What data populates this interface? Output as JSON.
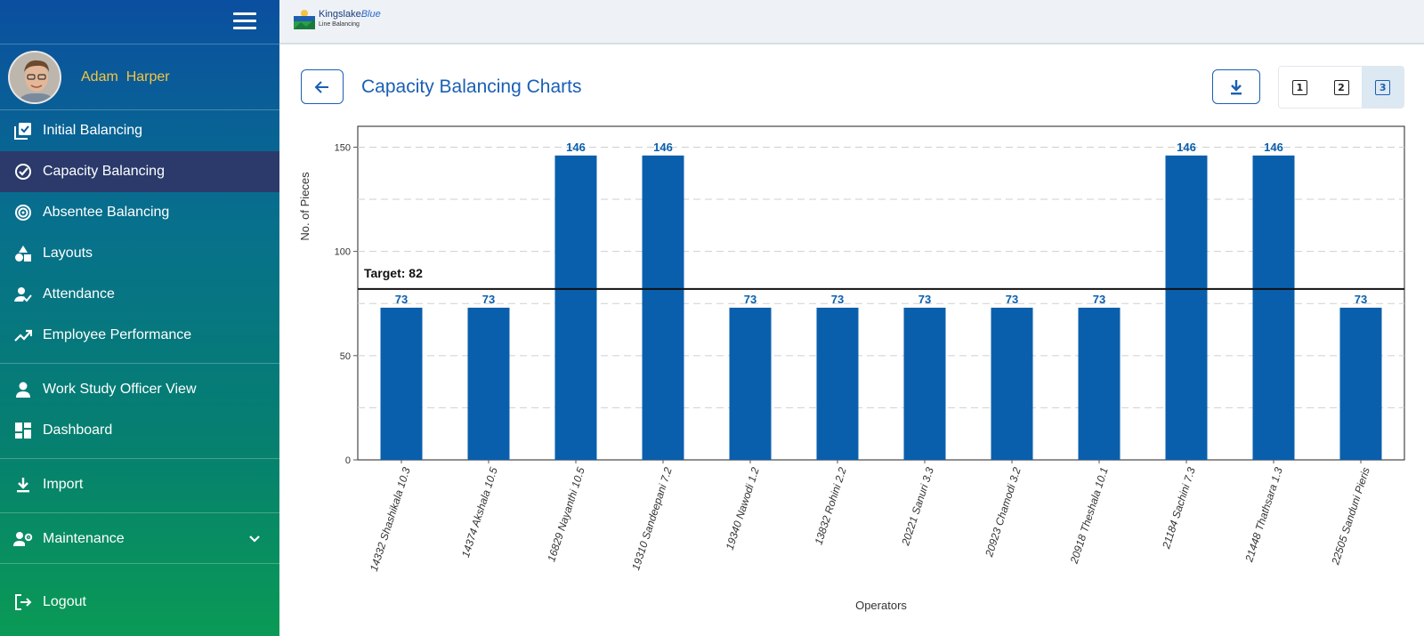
{
  "user": {
    "name": "Adam  Harper"
  },
  "nav": {
    "items": [
      {
        "label": "Initial Balancing",
        "icon": "checklist-icon"
      },
      {
        "label": "Capacity Balancing",
        "icon": "check-circle-icon",
        "active": true
      },
      {
        "label": "Absentee Balancing",
        "icon": "target-icon"
      },
      {
        "label": "Layouts",
        "icon": "shapes-icon"
      },
      {
        "label": "Attendance",
        "icon": "person-check-icon"
      },
      {
        "label": "Employee Performance",
        "icon": "trending-up-icon"
      },
      {
        "label": "Work Study Officer View",
        "icon": "person-icon"
      },
      {
        "label": "Dashboard",
        "icon": "dashboard-icon"
      },
      {
        "label": "Import",
        "icon": "download-icon"
      },
      {
        "label": "Maintenance",
        "icon": "people-gear-icon"
      },
      {
        "label": "Logout",
        "icon": "logout-icon"
      }
    ]
  },
  "logo": {
    "name": "Kingslake",
    "name_accent": "Blue",
    "subtitle": "Line Balancing"
  },
  "page": {
    "title": "Capacity Balancing Charts"
  },
  "view_buttons": [
    {
      "label": "1"
    },
    {
      "label": "2"
    },
    {
      "label": "3",
      "active": true
    }
  ],
  "colors": {
    "bar": "#0a5fad",
    "accent": "#1a5fb4",
    "active_nav": "#2b3a6b"
  },
  "chart_data": {
    "type": "bar",
    "categories": [
      "14332 Shashikala 10.3",
      "14374 Akshala 10.5",
      "16829 Nayanthi 10.5",
      "19310 Sandeepani 7.2",
      "19340 Nawodi 1.2",
      "13832 Rohini 2.2",
      "20221 Sanuri 3.3",
      "20923 Chamodi 3.2",
      "20918 Theshala 10.1",
      "21184 Sachini 7.3",
      "21448 Thathsara 1.3",
      "22505 Sanduni Pieris"
    ],
    "values": [
      73,
      73,
      146,
      146,
      73,
      73,
      73,
      73,
      73,
      146,
      146,
      73
    ],
    "target": 82,
    "target_label": "Target: 82",
    "xlabel": "Operators",
    "ylabel": "No. of Pieces",
    "ylim": [
      0,
      160
    ],
    "yticks": [
      0,
      50,
      100,
      150
    ],
    "grid": true
  }
}
